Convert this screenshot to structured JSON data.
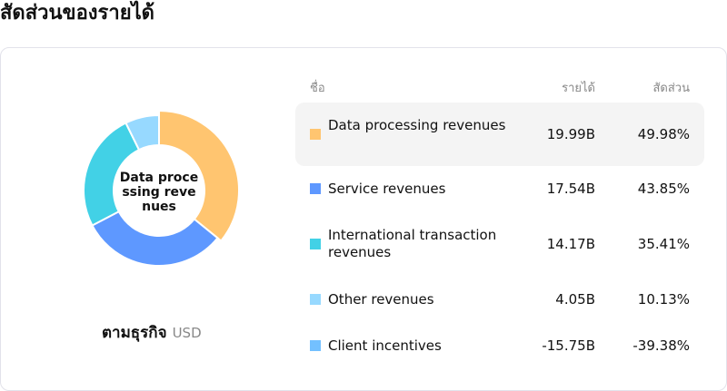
{
  "title": "สัดส่วนของรายได้",
  "caption": {
    "label": "ตามธุรกิจ",
    "unit": "USD"
  },
  "center_label": "Data proce ssing reve nues",
  "headers": {
    "name": "ชื่อ",
    "revenue": "รายได้",
    "share": "สัดส่วน"
  },
  "chart_data": {
    "type": "pie",
    "title": "สัดส่วนของรายได้",
    "categories": [
      "Data processing revenues",
      "Service revenues",
      "International transaction revenues",
      "Other revenues",
      "Client incentives"
    ],
    "values": [
      19.99,
      17.54,
      14.17,
      4.05,
      -15.75
    ],
    "value_labels": [
      "19.99B",
      "17.54B",
      "14.17B",
      "4.05B",
      "-15.75B"
    ],
    "shares": [
      "49.98%",
      "43.85%",
      "35.41%",
      "10.13%",
      "-39.38%"
    ],
    "colors": [
      "#FFC570",
      "#5E98FF",
      "#42D1E6",
      "#97D9FF",
      "#73C0FF"
    ],
    "highlighted": 0
  }
}
